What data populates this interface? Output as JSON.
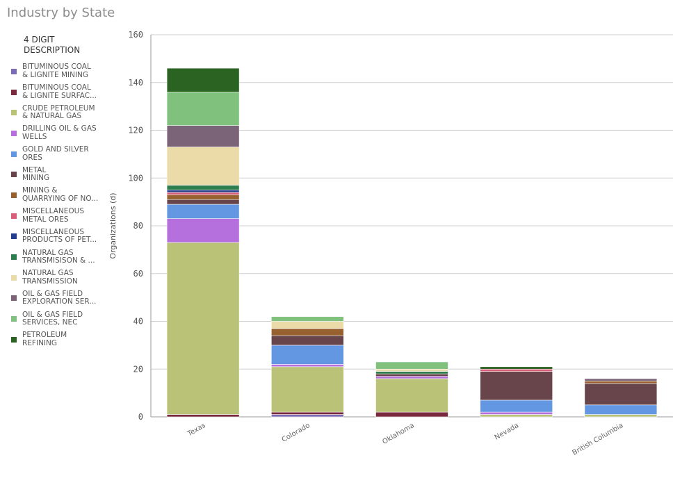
{
  "title": "Industry by State",
  "legend_title": "4 DIGIT\nDESCRIPTION",
  "chart_data": {
    "type": "bar",
    "stacked": true,
    "title": "Industry by State",
    "ylabel": "Organizations (d)",
    "xlabel": "",
    "ylim": [
      0,
      160
    ],
    "yticks": [
      0,
      20,
      40,
      60,
      80,
      100,
      120,
      140,
      160
    ],
    "categories": [
      "Texas",
      "Colorado",
      "Oklahoma",
      "Nevada",
      "British Columbia"
    ],
    "grid": true,
    "legend_position": "left",
    "series": [
      {
        "name": "BITUMINOUS COAL & LIGNITE MINING",
        "legend_label": "BITUMINOUS COAL\n& LIGNITE MINING",
        "color": "#7b6bb5",
        "values": [
          0,
          1,
          0,
          0,
          0
        ]
      },
      {
        "name": "BITUMINOUS COAL & LIGNITE SURFAC...",
        "legend_label": "BITUMINOUS COAL\n& LIGNITE SURFAC...",
        "color": "#7a2a3e",
        "values": [
          1,
          1,
          2,
          0,
          0
        ]
      },
      {
        "name": "CRUDE PETROLEUM & NATURAL GAS",
        "legend_label": "CRUDE PETROLEUM\n& NATURAL GAS",
        "color": "#b9c277",
        "values": [
          72,
          19,
          14,
          1,
          1
        ]
      },
      {
        "name": "DRILLING OIL & GAS WELLS",
        "legend_label": "DRILLING OIL & GAS\nWELLS",
        "color": "#b570de",
        "values": [
          10,
          1,
          1,
          1,
          0
        ]
      },
      {
        "name": "GOLD AND SILVER ORES",
        "legend_label": "GOLD AND SILVER\nORES",
        "color": "#6497e2",
        "values": [
          6,
          8,
          0,
          5,
          4
        ]
      },
      {
        "name": "METAL MINING",
        "legend_label": "METAL\nMINING",
        "color": "#67454b",
        "values": [
          2,
          4,
          1,
          12,
          9
        ]
      },
      {
        "name": "MINING & QUARRYING OF NO...",
        "legend_label": "MINING &\nQUARRYING OF NO...",
        "color": "#97612f",
        "values": [
          2,
          3,
          0,
          0,
          1
        ]
      },
      {
        "name": "MISCELLANEOUS METAL ORES",
        "legend_label": "MISCELLANEOUS\nMETAL ORES",
        "color": "#d75f7a",
        "values": [
          1,
          0,
          0,
          1,
          0
        ]
      },
      {
        "name": "MISCELLANEOUS PRODUCTS OF PET...",
        "legend_label": "MISCELLANEOUS\nPRODUCTS OF PET...",
        "color": "#233d8f",
        "values": [
          1,
          0,
          0,
          0,
          0
        ]
      },
      {
        "name": "NATURAL GAS TRANSMISISON & ...",
        "legend_label": "NATURAL GAS\nTRANSMISISON & ...",
        "color": "#2e7d4f",
        "values": [
          2,
          0,
          1,
          0,
          0
        ]
      },
      {
        "name": "NATURAL GAS TRANSMISSION",
        "legend_label": "NATURAL GAS\nTRANSMISSION",
        "color": "#ebdba9",
        "values": [
          16,
          3,
          1,
          0,
          0
        ]
      },
      {
        "name": "OIL & GAS FIELD EXPLORATION SER...",
        "legend_label": "OIL & GAS FIELD\nEXPLORATION SER...",
        "color": "#7b6478",
        "values": [
          9,
          0,
          0,
          0,
          1
        ]
      },
      {
        "name": "OIL & GAS FIELD SERVICES, NEC",
        "legend_label": "OIL & GAS FIELD\nSERVICES, NEC",
        "color": "#7fc17d",
        "values": [
          14,
          2,
          3,
          0,
          0
        ]
      },
      {
        "name": "PETROLEUM REFINING",
        "legend_label": "PETROLEUM\nREFINING",
        "color": "#2b6322",
        "values": [
          10,
          0,
          0,
          1,
          0
        ]
      }
    ]
  }
}
